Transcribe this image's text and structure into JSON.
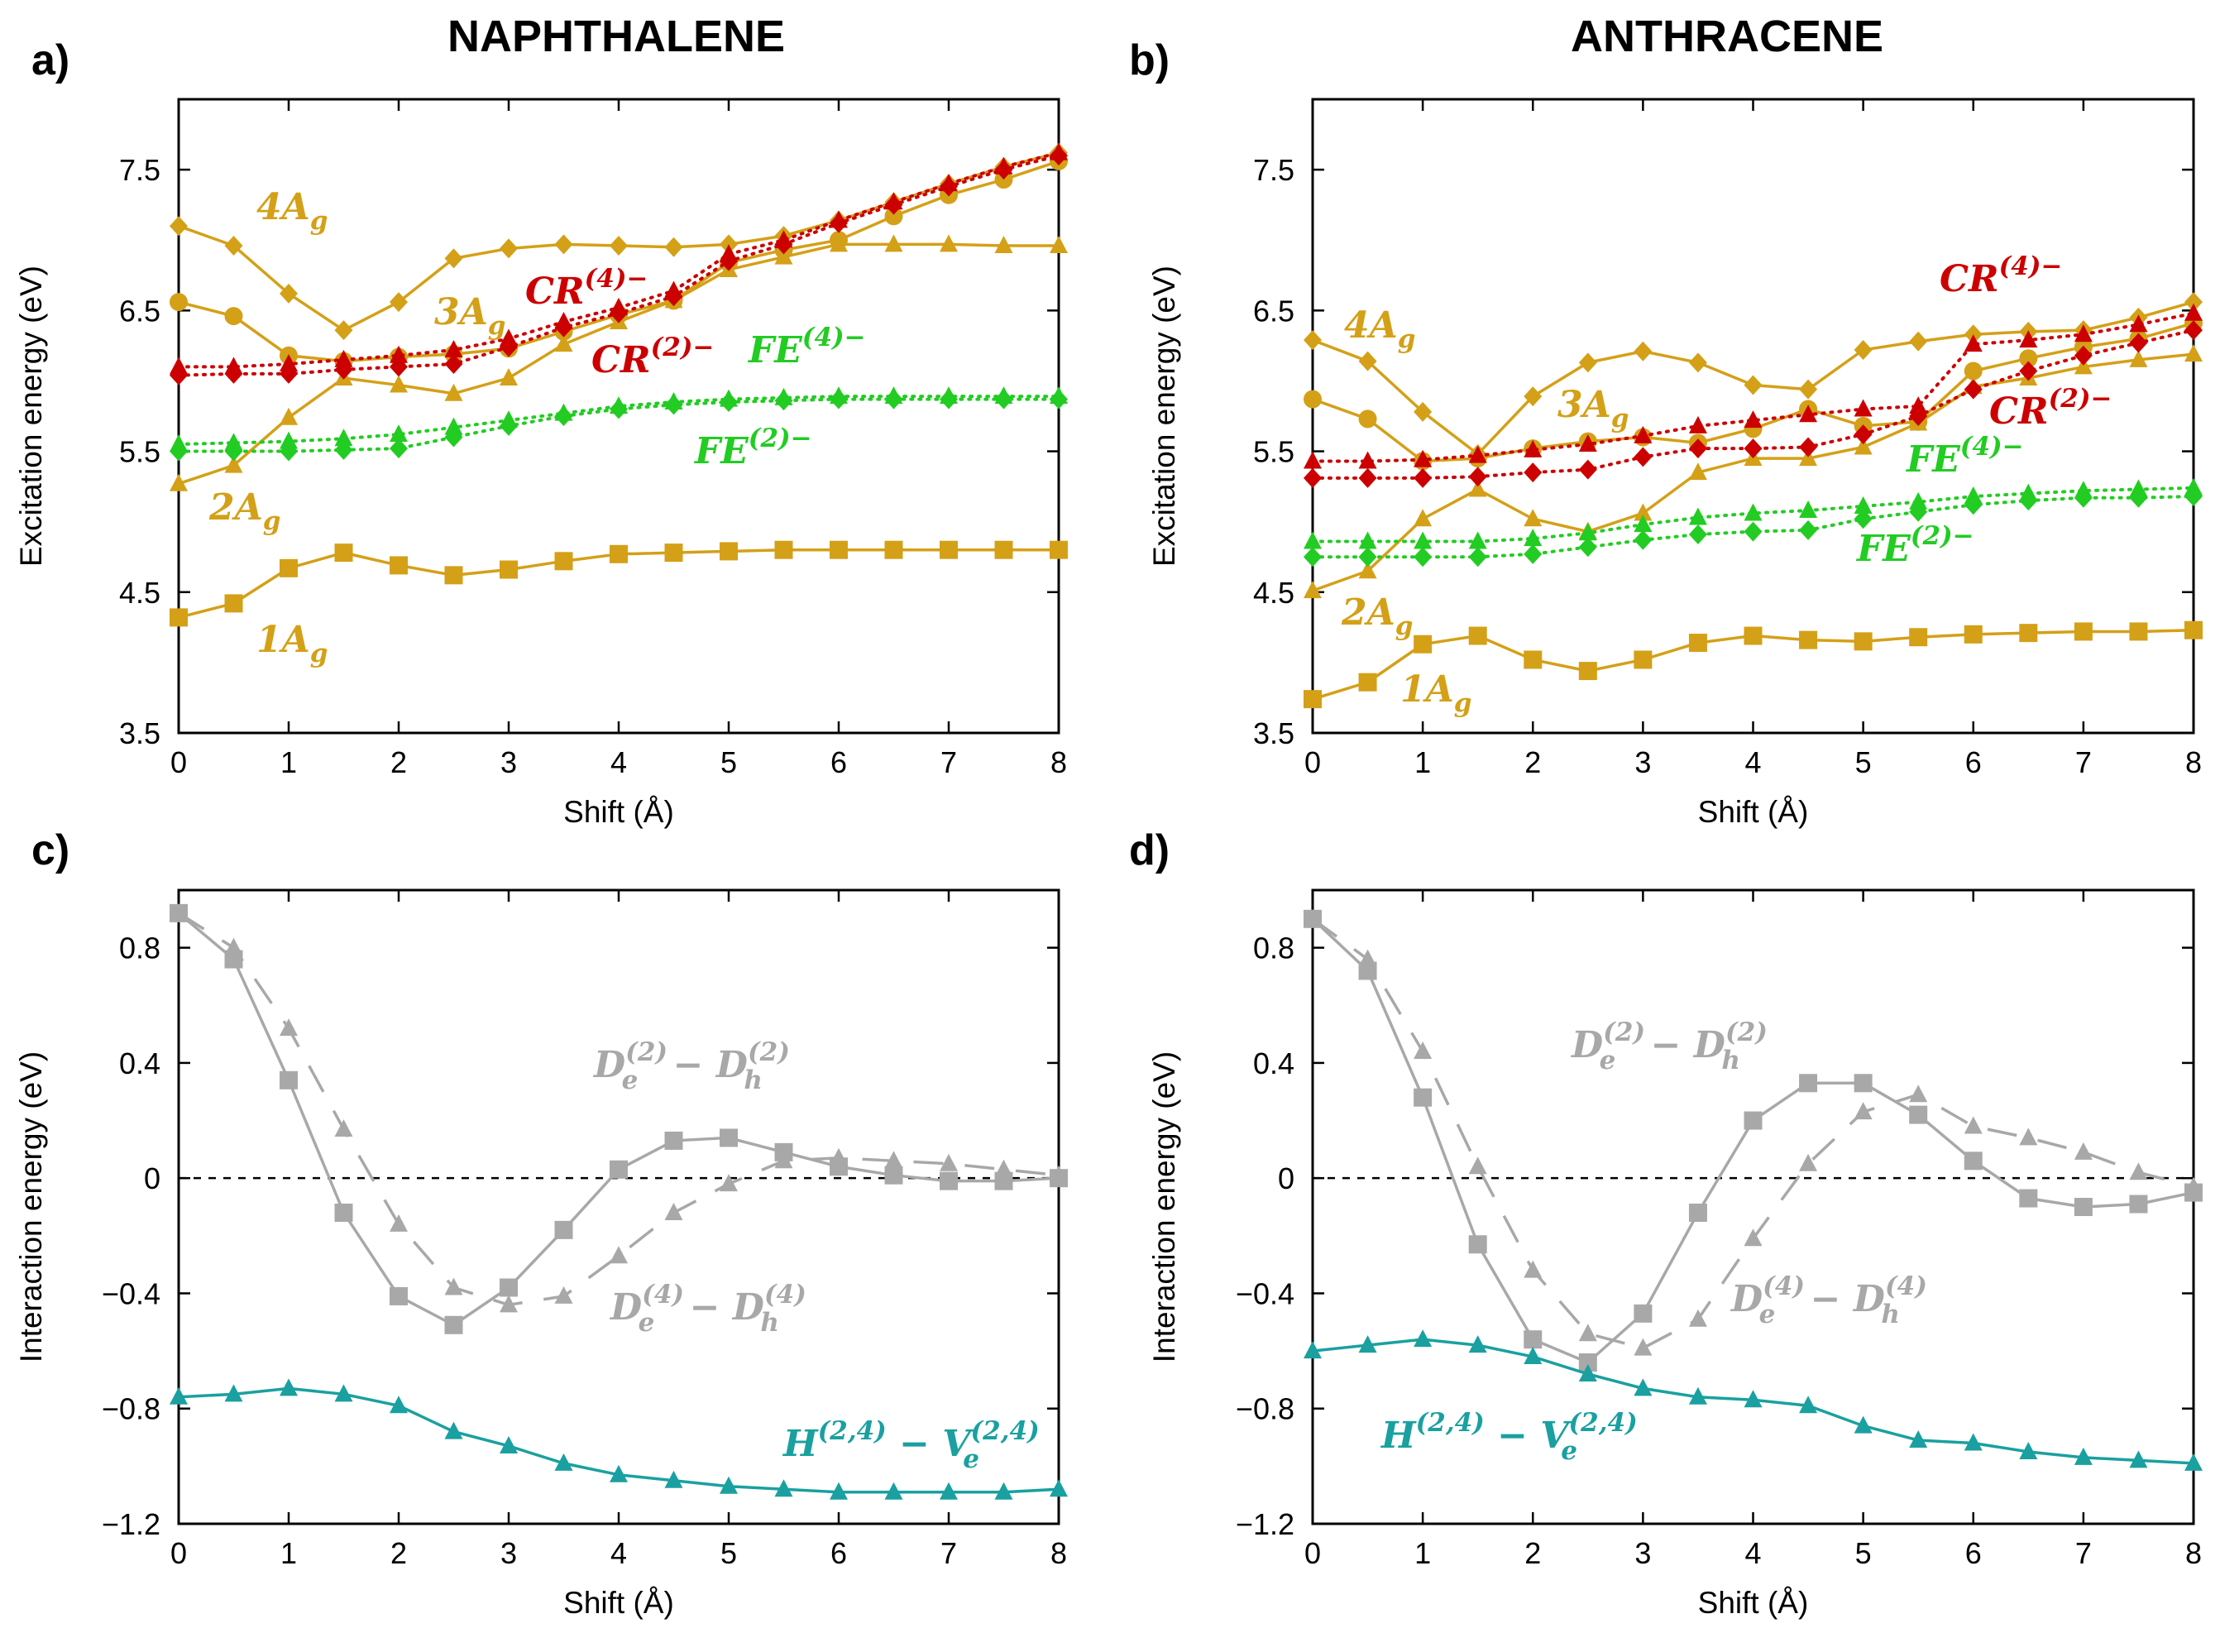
{
  "colors": {
    "gold": "#d4a017",
    "red": "#cc0000",
    "green": "#22cc22",
    "gray": "#a8a8a8",
    "teal": "#1aa0a0"
  },
  "chart_data": [
    {
      "id": "a",
      "panel_label": "a)",
      "title": "NAPHTHALENE",
      "type": "line",
      "xlabel": "Shift (Å)",
      "ylabel": "Excitation energy (eV)",
      "xlim": [
        0,
        8
      ],
      "ylim": [
        3.5,
        8.0
      ],
      "xticks": [
        0,
        1,
        2,
        3,
        4,
        5,
        6,
        7,
        8
      ],
      "xtick_labels": [
        "0",
        "1",
        "2",
        "3",
        "4",
        "5",
        "6",
        "7",
        "8"
      ],
      "yticks": [
        3.5,
        4.5,
        5.5,
        6.5,
        7.5
      ],
      "ytick_labels": [
        "3.5",
        "4.5",
        "5.5",
        "6.5",
        "7.5"
      ],
      "zero_line": false,
      "x": [
        0,
        0.5,
        1,
        1.5,
        2,
        2.5,
        3,
        3.5,
        4,
        4.5,
        5,
        5.5,
        6,
        6.5,
        7,
        7.5,
        8
      ],
      "series": [
        {
          "name": "1Ag",
          "color": "gold",
          "marker": "square",
          "dash": "solid",
          "values": [
            4.32,
            4.42,
            4.67,
            4.78,
            4.69,
            4.62,
            4.66,
            4.72,
            4.77,
            4.78,
            4.79,
            4.8,
            4.8,
            4.8,
            4.8,
            4.8,
            4.8
          ]
        },
        {
          "name": "2Ag",
          "color": "gold",
          "marker": "triangle",
          "dash": "solid",
          "values": [
            5.27,
            5.4,
            5.74,
            6.02,
            5.97,
            5.91,
            6.02,
            6.26,
            6.42,
            6.57,
            6.79,
            6.88,
            6.97,
            6.97,
            6.97,
            6.96,
            6.96
          ]
        },
        {
          "name": "3Ag",
          "color": "gold",
          "marker": "circle",
          "dash": "solid",
          "values": [
            6.56,
            6.46,
            6.18,
            6.14,
            6.17,
            6.19,
            6.23,
            6.35,
            6.47,
            6.57,
            6.84,
            6.93,
            7.0,
            7.17,
            7.32,
            7.43,
            7.56
          ]
        },
        {
          "name": "4Ag",
          "color": "gold",
          "marker": "diamond",
          "dash": "solid",
          "values": [
            7.1,
            6.96,
            6.62,
            6.36,
            6.56,
            6.87,
            6.94,
            6.97,
            6.96,
            6.95,
            6.97,
            7.03,
            7.14,
            7.27,
            7.4,
            7.52,
            7.62
          ]
        },
        {
          "name": "CR(2)-",
          "color": "red",
          "marker": "diamond",
          "dash": "dotted",
          "values": [
            6.04,
            6.05,
            6.05,
            6.08,
            6.1,
            6.12,
            6.24,
            6.38,
            6.48,
            6.6,
            6.85,
            6.97,
            7.12,
            7.25,
            7.38,
            7.5,
            7.6
          ]
        },
        {
          "name": "CR(4)-",
          "color": "red",
          "marker": "triangle",
          "dash": "dotted",
          "values": [
            6.1,
            6.1,
            6.12,
            6.15,
            6.18,
            6.22,
            6.3,
            6.42,
            6.52,
            6.64,
            6.9,
            7.0,
            7.14,
            7.27,
            7.4,
            7.52,
            7.62
          ]
        },
        {
          "name": "FE(2)-",
          "color": "green",
          "marker": "diamond",
          "dash": "dotted",
          "values": [
            5.5,
            5.5,
            5.5,
            5.51,
            5.52,
            5.6,
            5.68,
            5.75,
            5.8,
            5.83,
            5.85,
            5.86,
            5.87,
            5.87,
            5.87,
            5.87,
            5.87
          ]
        },
        {
          "name": "FE(4)-",
          "color": "green",
          "marker": "triangle",
          "dash": "dotted",
          "values": [
            5.55,
            5.56,
            5.57,
            5.59,
            5.62,
            5.67,
            5.72,
            5.77,
            5.82,
            5.85,
            5.87,
            5.88,
            5.89,
            5.89,
            5.89,
            5.89,
            5.89
          ]
        }
      ],
      "annotations": [
        {
          "text": "4A",
          "sub": "g",
          "color": "gold"
        },
        {
          "text": "3A",
          "sub": "g",
          "color": "gold"
        },
        {
          "text": "CR",
          "sup": "(4)−",
          "color": "red"
        },
        {
          "text": "CR",
          "sup": "(2)−",
          "color": "red"
        },
        {
          "text": "FE",
          "sup": "(4)−",
          "color": "green"
        },
        {
          "text": "FE",
          "sup": "(2)−",
          "color": "green"
        },
        {
          "text": "2A",
          "sub": "g",
          "color": "gold"
        },
        {
          "text": "1A",
          "sub": "g",
          "color": "gold"
        }
      ]
    },
    {
      "id": "b",
      "panel_label": "b)",
      "title": "ANTHRACENE",
      "type": "line",
      "xlabel": "Shift (Å)",
      "ylabel": "Excitation energy (eV)",
      "xlim": [
        0,
        8
      ],
      "ylim": [
        3.5,
        8.0
      ],
      "xticks": [
        0,
        1,
        2,
        3,
        4,
        5,
        6,
        7,
        8
      ],
      "xtick_labels": [
        "0",
        "1",
        "2",
        "3",
        "4",
        "5",
        "6",
        "7",
        "8"
      ],
      "yticks": [
        3.5,
        4.5,
        5.5,
        6.5,
        7.5
      ],
      "ytick_labels": [
        "3.5",
        "4.5",
        "5.5",
        "6.5",
        "7.5"
      ],
      "zero_line": false,
      "x": [
        0,
        0.5,
        1,
        1.5,
        2,
        2.5,
        3,
        3.5,
        4,
        4.5,
        5,
        5.5,
        6,
        6.5,
        7,
        7.5,
        8
      ],
      "series": [
        {
          "name": "1Ag",
          "color": "gold",
          "marker": "square",
          "dash": "solid",
          "values": [
            3.74,
            3.86,
            4.13,
            4.19,
            4.02,
            3.94,
            4.02,
            4.14,
            4.19,
            4.16,
            4.15,
            4.18,
            4.2,
            4.21,
            4.22,
            4.22,
            4.23
          ]
        },
        {
          "name": "2Ag",
          "color": "gold",
          "marker": "triangle",
          "dash": "solid",
          "values": [
            4.51,
            4.65,
            5.02,
            5.23,
            5.02,
            4.93,
            5.06,
            5.35,
            5.45,
            5.45,
            5.53,
            5.7,
            5.96,
            6.02,
            6.1,
            6.15,
            6.19
          ]
        },
        {
          "name": "3Ag",
          "color": "gold",
          "marker": "circle",
          "dash": "solid",
          "values": [
            5.87,
            5.73,
            5.43,
            5.45,
            5.52,
            5.57,
            5.6,
            5.56,
            5.66,
            5.8,
            5.68,
            5.71,
            6.07,
            6.16,
            6.24,
            6.3,
            6.41
          ]
        },
        {
          "name": "4Ag",
          "color": "gold",
          "marker": "diamond",
          "dash": "solid",
          "values": [
            6.29,
            6.14,
            5.78,
            5.48,
            5.89,
            6.13,
            6.21,
            6.13,
            5.97,
            5.94,
            6.22,
            6.28,
            6.33,
            6.35,
            6.36,
            6.45,
            6.56
          ]
        },
        {
          "name": "CR(2)-",
          "color": "red",
          "marker": "diamond",
          "dash": "dotted",
          "values": [
            5.31,
            5.31,
            5.31,
            5.32,
            5.35,
            5.37,
            5.46,
            5.52,
            5.52,
            5.53,
            5.62,
            5.75,
            5.94,
            6.07,
            6.18,
            6.27,
            6.36
          ]
        },
        {
          "name": "CR(4)-",
          "color": "red",
          "marker": "triangle",
          "dash": "dotted",
          "values": [
            5.43,
            5.43,
            5.44,
            5.47,
            5.51,
            5.55,
            5.61,
            5.68,
            5.72,
            5.76,
            5.8,
            5.82,
            6.26,
            6.29,
            6.33,
            6.4,
            6.48
          ]
        },
        {
          "name": "FE(2)-",
          "color": "green",
          "marker": "diamond",
          "dash": "dotted",
          "values": [
            4.75,
            4.75,
            4.75,
            4.75,
            4.77,
            4.82,
            4.87,
            4.91,
            4.93,
            4.94,
            5.02,
            5.07,
            5.12,
            5.15,
            5.17,
            5.17,
            5.18
          ]
        },
        {
          "name": "FE(4)-",
          "color": "green",
          "marker": "triangle",
          "dash": "dotted",
          "values": [
            4.86,
            4.86,
            4.86,
            4.86,
            4.88,
            4.92,
            4.98,
            5.03,
            5.06,
            5.08,
            5.11,
            5.14,
            5.18,
            5.2,
            5.22,
            5.23,
            5.24
          ]
        }
      ],
      "annotations": [
        {
          "text": "4A",
          "sub": "g",
          "color": "gold"
        },
        {
          "text": "CR",
          "sup": "(4)−",
          "color": "red"
        },
        {
          "text": "3A",
          "sub": "g",
          "color": "gold"
        },
        {
          "text": "CR",
          "sup": "(2)−",
          "color": "red"
        },
        {
          "text": "FE",
          "sup": "(4)−",
          "color": "green"
        },
        {
          "text": "FE",
          "sup": "(2)−",
          "color": "green"
        },
        {
          "text": "2A",
          "sub": "g",
          "color": "gold"
        },
        {
          "text": "1A",
          "sub": "g",
          "color": "gold"
        }
      ]
    },
    {
      "id": "c",
      "panel_label": "c)",
      "title": "",
      "type": "line",
      "xlabel": "Shift (Å)",
      "ylabel": "Interaction energy (eV)",
      "xlim": [
        0,
        8
      ],
      "ylim": [
        -1.2,
        1.0
      ],
      "xticks": [
        0,
        1,
        2,
        3,
        4,
        5,
        6,
        7,
        8
      ],
      "xtick_labels": [
        "0",
        "1",
        "2",
        "3",
        "4",
        "5",
        "6",
        "7",
        "8"
      ],
      "yticks": [
        -1.2,
        -0.8,
        -0.4,
        0,
        0.4,
        0.8
      ],
      "ytick_labels": [
        "−1.2",
        "−0.8",
        "−0.4",
        "0",
        "0.4",
        "0.8"
      ],
      "zero_line": true,
      "x": [
        0,
        0.5,
        1,
        1.5,
        2,
        2.5,
        3,
        3.5,
        4,
        4.5,
        5,
        5.5,
        6,
        6.5,
        7,
        7.5,
        8
      ],
      "series": [
        {
          "name": "De(2)-Dh(2)",
          "color": "gray",
          "marker": "square",
          "dash": "solid",
          "values": [
            0.92,
            0.76,
            0.34,
            -0.12,
            -0.41,
            -0.51,
            -0.38,
            -0.18,
            0.03,
            0.13,
            0.14,
            0.09,
            0.04,
            0.01,
            -0.01,
            -0.01,
            0.0
          ]
        },
        {
          "name": "De(4)-Dh(4)",
          "color": "gray",
          "marker": "triangle",
          "dash": "longdash",
          "values": [
            0.92,
            0.8,
            0.52,
            0.17,
            -0.16,
            -0.38,
            -0.44,
            -0.41,
            -0.27,
            -0.12,
            -0.02,
            0.06,
            0.07,
            0.06,
            0.05,
            0.03,
            0.01
          ]
        },
        {
          "name": "H(2,4)-Ve(2,4)",
          "color": "teal",
          "marker": "triangle",
          "dash": "solid",
          "values": [
            -0.76,
            -0.75,
            -0.73,
            -0.75,
            -0.79,
            -0.88,
            -0.93,
            -0.99,
            -1.03,
            -1.05,
            -1.07,
            -1.08,
            -1.09,
            -1.09,
            -1.09,
            -1.09,
            -1.08
          ]
        }
      ],
      "annotations": [
        {
          "text": "D",
          "sub": "e",
          "sup": "(2)",
          "text2": " − D",
          "sub2": "h",
          "sup2": "(2)",
          "color": "gray"
        },
        {
          "text": "D",
          "sub": "e",
          "sup": "(4)",
          "text2": " − D",
          "sub2": "h",
          "sup2": "(4)",
          "color": "gray"
        },
        {
          "text": "H",
          "sup": "(2,4)",
          "text2": " − V",
          "sub2": "e",
          "sup2": "(2,4)",
          "color": "teal"
        }
      ]
    },
    {
      "id": "d",
      "panel_label": "d)",
      "title": "",
      "type": "line",
      "xlabel": "Shift (Å)",
      "ylabel": "Interaction energy (eV)",
      "xlim": [
        0,
        8
      ],
      "ylim": [
        -1.2,
        1.0
      ],
      "xticks": [
        0,
        1,
        2,
        3,
        4,
        5,
        6,
        7,
        8
      ],
      "xtick_labels": [
        "0",
        "1",
        "2",
        "3",
        "4",
        "5",
        "6",
        "7",
        "8"
      ],
      "yticks": [
        -1.2,
        -0.8,
        -0.4,
        0,
        0.4,
        0.8
      ],
      "ytick_labels": [
        "−1.2",
        "−0.8",
        "−0.4",
        "0",
        "0.4",
        "0.8"
      ],
      "zero_line": true,
      "x": [
        0,
        0.5,
        1,
        1.5,
        2,
        2.5,
        3,
        3.5,
        4,
        4.5,
        5,
        5.5,
        6,
        6.5,
        7,
        7.5,
        8
      ],
      "series": [
        {
          "name": "De(2)-Dh(2)",
          "color": "gray",
          "marker": "square",
          "dash": "solid",
          "values": [
            0.9,
            0.72,
            0.28,
            -0.23,
            -0.56,
            -0.64,
            -0.47,
            -0.12,
            0.2,
            0.33,
            0.33,
            0.22,
            0.06,
            -0.07,
            -0.1,
            -0.09,
            -0.05
          ]
        },
        {
          "name": "De(4)-Dh(4)",
          "color": "gray",
          "marker": "triangle",
          "dash": "longdash",
          "values": [
            0.9,
            0.76,
            0.44,
            0.04,
            -0.32,
            -0.54,
            -0.59,
            -0.49,
            -0.21,
            0.05,
            0.23,
            0.29,
            0.18,
            0.14,
            0.09,
            0.02,
            -0.03
          ]
        },
        {
          "name": "H(2,4)-Ve(2,4)",
          "color": "teal",
          "marker": "triangle",
          "dash": "solid",
          "values": [
            -0.6,
            -0.58,
            -0.56,
            -0.58,
            -0.62,
            -0.68,
            -0.73,
            -0.76,
            -0.77,
            -0.79,
            -0.86,
            -0.91,
            -0.92,
            -0.95,
            -0.97,
            -0.98,
            -0.99
          ]
        }
      ],
      "annotations": [
        {
          "text": "D",
          "sub": "e",
          "sup": "(2)",
          "text2": " − D",
          "sub2": "h",
          "sup2": "(2)",
          "color": "gray"
        },
        {
          "text": "D",
          "sub": "e",
          "sup": "(4)",
          "text2": " − D",
          "sub2": "h",
          "sup2": "(4)",
          "color": "gray"
        },
        {
          "text": "H",
          "sup": "(2,4)",
          "text2": " − V",
          "sub2": "e",
          "sup2": "(2,4)",
          "color": "teal"
        }
      ]
    }
  ]
}
